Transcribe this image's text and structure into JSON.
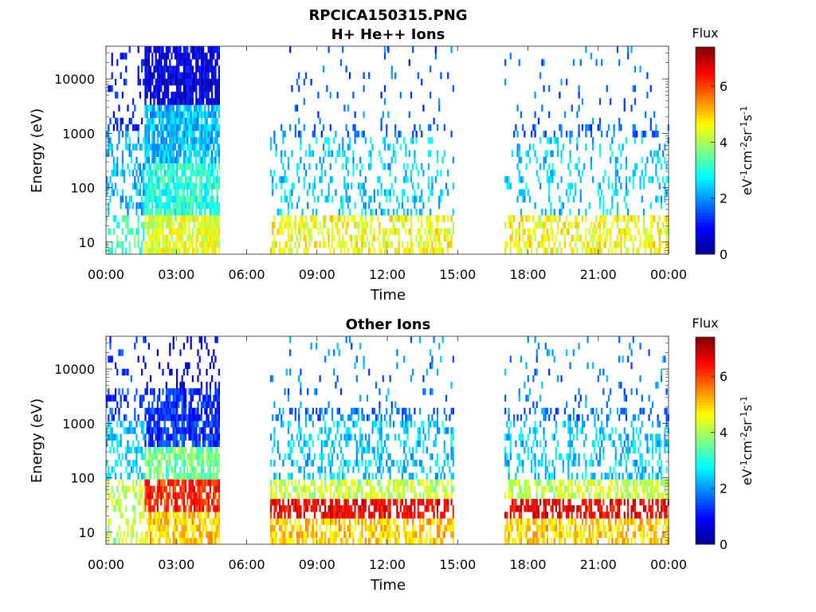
{
  "figure": {
    "title": "RPCICA150315.PNG"
  },
  "colormap": [
    "#00008f",
    "#0000ff",
    "#0080ff",
    "#00ffff",
    "#80ff80",
    "#ffff00",
    "#ff8000",
    "#ff0000",
    "#800000"
  ],
  "chart_data": [
    {
      "type": "heatmap",
      "title": "H+ He++ Ions",
      "xlabel": "Time",
      "ylabel": "Energy (eV)",
      "xticks": [
        "00:00",
        "03:00",
        "06:00",
        "09:00",
        "12:00",
        "15:00",
        "18:00",
        "21:00",
        "00:00"
      ],
      "xlim_hours": [
        0,
        24
      ],
      "yscale": "log",
      "ylim": [
        6,
        40000
      ],
      "yticks": [
        "10",
        "100",
        "1000",
        "10000"
      ],
      "colorbar": {
        "label": "Flux",
        "units": "eV^-1 cm^-2 sr^-1 s^-1",
        "ticks": [
          "0",
          "2",
          "4",
          "6"
        ],
        "range": [
          0,
          7.4
        ]
      },
      "data_segments_hours": [
        [
          0,
          4.85
        ],
        [
          7.0,
          14.85
        ],
        [
          17.0,
          24
        ]
      ],
      "typical_flux": {
        "00:00-01:40": {
          "low_energy": 3,
          "high_energy": 1
        },
        "01:40-04:50": {
          "low_energy": 4.5,
          "high_energy": 1.5
        },
        "07:00-15:00": {
          "low_energy": 4.5,
          "high_energy": 2.5
        },
        "17:00-24:00": {
          "low_energy": 4.5,
          "high_energy": 2.5
        }
      }
    },
    {
      "type": "heatmap",
      "title": "Other Ions",
      "xlabel": "Time",
      "ylabel": "Energy (eV)",
      "xticks": [
        "00:00",
        "03:00",
        "06:00",
        "09:00",
        "12:00",
        "15:00",
        "18:00",
        "21:00",
        "00:00"
      ],
      "xlim_hours": [
        0,
        24
      ],
      "yscale": "log",
      "ylim": [
        6,
        40000
      ],
      "yticks": [
        "10",
        "100",
        "1000",
        "10000"
      ],
      "colorbar": {
        "label": "Flux",
        "units": "eV^-1 cm^-2 sr^-1 s^-1",
        "ticks": [
          "0",
          "2",
          "4",
          "6"
        ],
        "range": [
          0,
          7.4
        ]
      },
      "data_segments_hours": [
        [
          0,
          4.85
        ],
        [
          7.0,
          14.85
        ],
        [
          17.0,
          24
        ]
      ],
      "typical_flux": {
        "00:00-01:40": {
          "low_energy": 4,
          "high_energy": 2
        },
        "01:40-04:50": {
          "low_energy": 6,
          "high_energy": 1.5
        },
        "07:00-15:00": {
          "low_energy": 6.5,
          "high_energy": 2.5
        },
        "17:00-24:00": {
          "low_energy": 6.5,
          "high_energy": 2.5
        }
      }
    }
  ]
}
